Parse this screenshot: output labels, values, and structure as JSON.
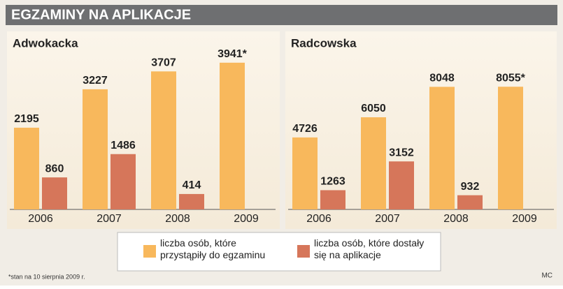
{
  "title": "EGZAMINY NA APLIKACJE",
  "footnote": "*stan na 10 sierpnia 2009 r.",
  "credit": "MC",
  "chart_data": [
    {
      "type": "bar",
      "title": "Adwokacka",
      "categories": [
        "2006",
        "2007",
        "2008",
        "2009"
      ],
      "ylim": [
        0,
        4500
      ],
      "series": [
        {
          "name": "liczba osób, które przystąpiły do egzaminu",
          "color": "#f8b85c",
          "values": [
            2195,
            3227,
            3707,
            3941
          ],
          "value_labels": [
            "2195",
            "3227",
            "3707",
            "3941*"
          ]
        },
        {
          "name": "liczba osób, które dostały się na aplikacje",
          "color": "#d6765a",
          "values": [
            860,
            1486,
            414,
            null
          ]
        }
      ]
    },
    {
      "type": "bar",
      "title": "Radcowska",
      "categories": [
        "2006",
        "2007",
        "2008",
        "2009"
      ],
      "ylim": [
        0,
        11000
      ],
      "series": [
        {
          "color": "#f8b85c",
          "values": [
            4726,
            6050,
            8048,
            8055
          ],
          "value_labels": [
            "4726",
            "6050",
            "8048",
            "8055*"
          ]
        },
        {
          "color": "#d6765a",
          "values": [
            1263,
            3152,
            932,
            null
          ]
        }
      ]
    }
  ]
}
